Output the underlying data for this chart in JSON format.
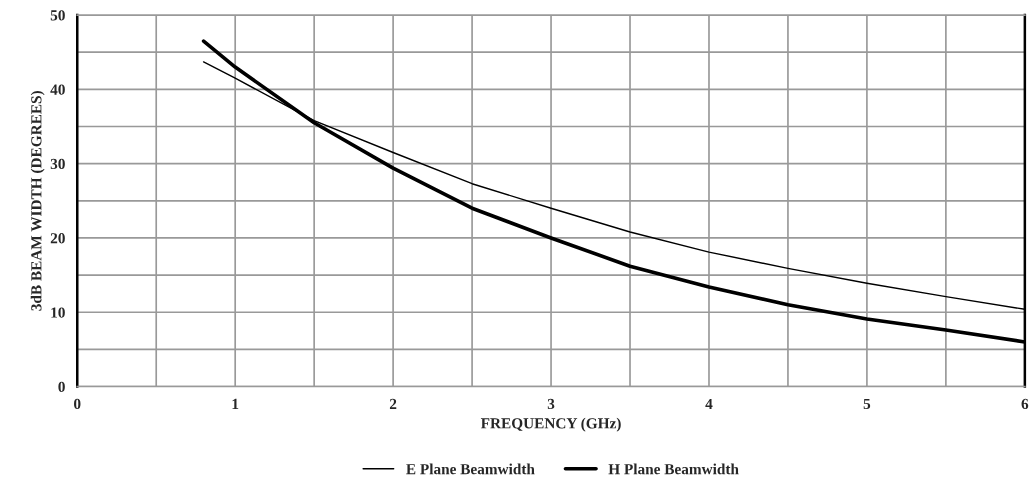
{
  "chart_data": {
    "type": "line",
    "xlabel": "FREQUENCY (GHz)",
    "ylabel": "3dB BEAM WIDTH (DEGREES)",
    "xlim": [
      0,
      6
    ],
    "ylim": [
      0,
      50
    ],
    "xticks": [
      0,
      {
        "value": 0.5,
        "label": null
      },
      1,
      {
        "value": 1.5,
        "label": null
      },
      2,
      {
        "value": 2.5,
        "label": null
      },
      3,
      {
        "value": 3.5,
        "label": null
      },
      4,
      {
        "value": 4.5,
        "label": null
      },
      5,
      {
        "value": 5.5,
        "label": null
      },
      6
    ],
    "yticks": [
      0,
      {
        "value": 5,
        "label": null
      },
      10,
      {
        "value": 15,
        "label": null
      },
      20,
      {
        "value": 25,
        "label": null
      },
      30,
      {
        "value": 35,
        "label": null
      },
      40,
      {
        "value": 45,
        "label": null
      },
      50
    ],
    "grid": true,
    "legend": "bottom",
    "marker": "none",
    "line_style": "solid",
    "series": [
      {
        "name": "E Plane Beamwidth",
        "color": "#000000",
        "x": [
          0.8,
          1,
          1.5,
          2,
          2.5,
          3,
          3.5,
          4,
          4.5,
          5,
          5.5,
          6
        ],
        "values": [
          43.7,
          41.5,
          35.8,
          31.5,
          27.3,
          24,
          20.8,
          18.1,
          15.9,
          13.9,
          12.1,
          10.4
        ]
      },
      {
        "name": "H Plane Beamwidth",
        "color": "#000000",
        "x": [
          0.8,
          1,
          1.5,
          2,
          2.5,
          3,
          3.5,
          4,
          4.5,
          5,
          5.5,
          6
        ],
        "values": [
          46.5,
          43,
          35.5,
          29.4,
          24,
          20,
          16.2,
          13.4,
          11,
          9.1,
          7.6,
          6
        ]
      }
    ]
  }
}
